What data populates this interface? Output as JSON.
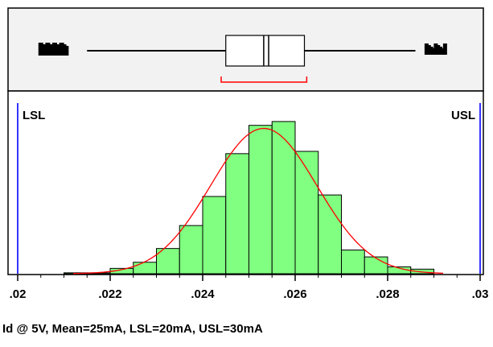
{
  "chart_data": {
    "type": "bar",
    "subtype": "histogram-with-boxplot",
    "caption": "Id @ 5V, Mean=25mA, LSL=20mA, USL=30mA",
    "xlim": [
      0.02,
      0.03
    ],
    "ylim": [
      0,
      100
    ],
    "x_ticks": [
      {
        "value": 0.02,
        "label": ".02"
      },
      {
        "value": 0.022,
        "label": ".022"
      },
      {
        "value": 0.024,
        "label": ".024"
      },
      {
        "value": 0.026,
        "label": ".026"
      },
      {
        "value": 0.028,
        "label": ".028"
      },
      {
        "value": 0.03,
        "label": ".03"
      }
    ],
    "bin_width": 0.0005,
    "bins_start": [
      0.021,
      0.0215,
      0.022,
      0.0225,
      0.023,
      0.0235,
      0.024,
      0.0245,
      0.025,
      0.0255,
      0.026,
      0.0265,
      0.027,
      0.0275,
      0.028,
      0.0285
    ],
    "counts": [
      0.6,
      0.6,
      3.5,
      7.5,
      16.5,
      31.5,
      50.5,
      78.5,
      97,
      99.5,
      80,
      51.5,
      15.5,
      11,
      4.5,
      3
    ],
    "normal_fit": {
      "mean": 0.02532,
      "sd": 0.00115,
      "peak": 95
    },
    "boxplot": {
      "whisker_low": 0.0215,
      "q1": 0.0245,
      "median": 0.02532,
      "mean": 0.02534,
      "q3": 0.0262,
      "whisker_high": 0.0286,
      "outliers_low": [
        0.0205,
        0.02055,
        0.0206,
        0.02065,
        0.0207,
        0.02075,
        0.0208,
        0.02085,
        0.0209,
        0.02095,
        0.021,
        0.02105
      ],
      "outliers_high": [
        0.02885,
        0.0289,
        0.02895,
        0.029,
        0.02905,
        0.0291,
        0.02915,
        0.0292,
        0.02925
      ],
      "shortest_half": [
        0.0244,
        0.02625
      ]
    },
    "spec_limits": [
      {
        "label": "LSL",
        "value": 0.02
      },
      {
        "label": "USL",
        "value": 0.03
      }
    ],
    "colors": {
      "bars": "#80ff80",
      "bar_edge": "#000000",
      "fit_curve": "#ff0000",
      "spec_lines": "#3333ff",
      "shortest_half": "#ff0000",
      "box_panel_bg": "#f2f2f2"
    }
  }
}
